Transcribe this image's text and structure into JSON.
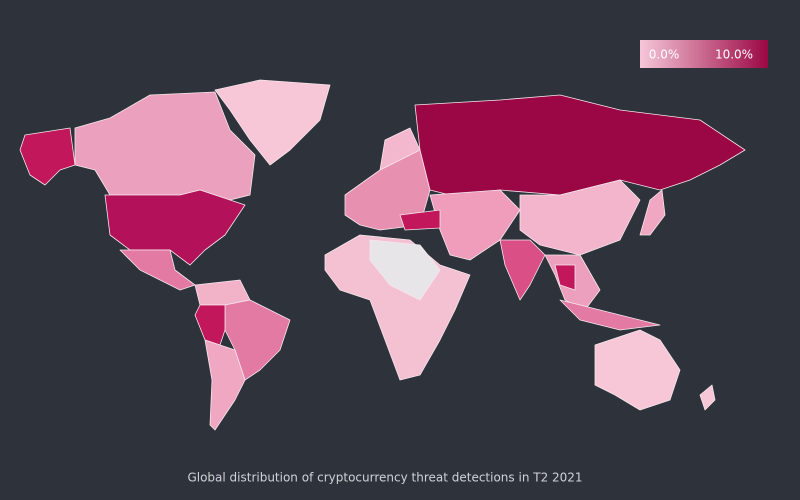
{
  "legend": {
    "min_label": "0.0%",
    "max_label": "10.0%"
  },
  "caption": "Global distribution of cryptocurrency threat detections in T2 2021"
}
